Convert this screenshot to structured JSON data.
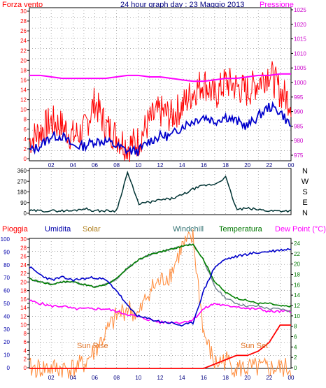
{
  "header": {
    "wind_label": "Forza vento",
    "title": "24 hour graph day : 23 Maggio 2013",
    "pressure_label": "Pressione"
  },
  "x_tick_labels": [
    "02",
    "04",
    "06",
    "08",
    "10",
    "12",
    "14",
    "16",
    "18",
    "20",
    "22",
    "00"
  ],
  "panel_wind": {
    "wind_axis": [
      "30",
      "28",
      "26",
      "24",
      "22",
      "20",
      "18",
      "16",
      "14",
      "12",
      "10",
      "8",
      "6",
      "4",
      "2",
      "0"
    ],
    "pressure_axis": [
      "1025",
      "1020",
      "1015",
      "1010",
      "1005",
      "1000",
      "995",
      "990",
      "985",
      "980",
      "975"
    ]
  },
  "panel_direction": {
    "axis": [
      "360",
      "270",
      "180",
      "90",
      "0"
    ],
    "compass": [
      "N",
      "W",
      "S",
      "E",
      "N"
    ]
  },
  "panel_humidity": {
    "labels": {
      "rain": "Pioggia",
      "humidity": "Umidita",
      "solar": "Solar",
      "windchill": "Windchill",
      "temperature": "Temperatura",
      "dewpoint": "Dew Point (°C)"
    },
    "humidity_axis": [
      "100",
      "90",
      "80",
      "70",
      "60",
      "50",
      "40",
      "30",
      "20",
      "10",
      "0"
    ],
    "rain_axis": [
      "30",
      "28",
      "26",
      "24",
      "22",
      "20",
      "18",
      "16",
      "14",
      "12",
      "10",
      "8",
      "6",
      "4",
      "2",
      "0"
    ],
    "temp_axis": [
      "24",
      "22",
      "20",
      "18",
      "16",
      "14",
      "12",
      "10",
      "8",
      "6",
      "4",
      "2",
      "0"
    ],
    "annotations": {
      "sunrise": "Sun Rise",
      "sunset": "Sun Set"
    }
  },
  "colors": {
    "wind": "#ff0000",
    "gust": "#ff0000",
    "avg_wind": "#0000cc",
    "pressure": "#ff00ff",
    "direction": "#003333",
    "humidity": "#0000cc",
    "solar": "#ff8c3c",
    "windchill": "#708090",
    "temperature": "#008000",
    "dewpoint": "#ff00ff",
    "rain": "#ff0000"
  },
  "chart_data": [
    {
      "type": "line",
      "xlabel": "",
      "ylabel": "Forza vento",
      "x": [
        0,
        1,
        2,
        3,
        4,
        5,
        6,
        7,
        8,
        9,
        10,
        11,
        12,
        13,
        14,
        15,
        16,
        17,
        18,
        19,
        20,
        21,
        22,
        23,
        24
      ],
      "ylim": [
        0,
        31
      ],
      "y2lim": [
        974,
        1026
      ],
      "series": [
        {
          "name": "Forza vento",
          "axis": "left",
          "values": [
            4,
            6,
            8,
            7,
            5,
            6,
            12,
            7,
            5,
            3,
            4,
            8,
            10,
            9,
            11,
            14,
            16,
            13,
            16,
            15,
            14,
            16,
            18,
            14,
            12
          ]
        },
        {
          "name": "",
          "axis": "left",
          "values": [
            2,
            3,
            5,
            5,
            3,
            3,
            4,
            4,
            3,
            2,
            2,
            4,
            5,
            5,
            7,
            8,
            9,
            8,
            9,
            8,
            7,
            9,
            11,
            10,
            7
          ]
        },
        {
          "name": "Pressione",
          "axis": "right",
          "values": [
            1003,
            1003,
            1002.5,
            1002,
            1002,
            1002,
            1002,
            1002,
            1002.5,
            1003,
            1003,
            1002.5,
            1002.5,
            1002,
            1001.5,
            1001,
            1001,
            1001.5,
            1002,
            1002,
            1002.5,
            1003,
            1003,
            1003.5,
            1003.5
          ]
        }
      ]
    },
    {
      "type": "line",
      "ylabel": "",
      "x": [
        0,
        1,
        2,
        3,
        4,
        5,
        6,
        7,
        8,
        9,
        10,
        11,
        12,
        13,
        14,
        15,
        16,
        17,
        18,
        19,
        20,
        21,
        22,
        23,
        24
      ],
      "ylim": [
        0,
        360
      ],
      "series": [
        {
          "name": "",
          "values": [
            20,
            20,
            20,
            20,
            20,
            40,
            20,
            20,
            20,
            340,
            80,
            90,
            110,
            120,
            150,
            200,
            230,
            240,
            300,
            30,
            40,
            30,
            20,
            20,
            20
          ]
        }
      ]
    },
    {
      "type": "line",
      "ylabel": "Umidita",
      "x": [
        0,
        1,
        2,
        3,
        4,
        5,
        6,
        7,
        8,
        9,
        10,
        11,
        12,
        13,
        14,
        15,
        16,
        17,
        18,
        19,
        20,
        21,
        22,
        23,
        24
      ],
      "ylim": [
        0,
        100
      ],
      "y2lim": [
        0,
        30
      ],
      "y3lim": [
        0,
        24
      ],
      "series": [
        {
          "name": "Umidita",
          "axis": "humidity",
          "values": [
            78,
            72,
            68,
            70,
            68,
            69,
            70,
            68,
            60,
            48,
            40,
            38,
            36,
            35,
            33,
            35,
            60,
            78,
            84,
            86,
            88,
            89,
            90,
            91,
            92
          ]
        },
        {
          "name": "Pioggia",
          "axis": "rain",
          "values": [
            0,
            0,
            0,
            0,
            0,
            0,
            0,
            0,
            0,
            0,
            0,
            0,
            0,
            0,
            0,
            0,
            0,
            1,
            2,
            3,
            3,
            4,
            6,
            10,
            10
          ]
        },
        {
          "name": "Solar",
          "axis": "rain",
          "values": [
            0,
            0,
            0,
            0,
            0,
            1,
            4,
            8,
            12,
            14,
            12,
            18,
            20,
            22,
            28,
            30,
            8,
            1,
            2,
            0,
            0,
            0,
            0,
            0,
            0
          ]
        },
        {
          "name": "Windchill",
          "axis": "temp",
          "values": [
            16.5,
            16,
            15.5,
            16,
            16,
            15.5,
            15,
            15.5,
            16.5,
            18.5,
            20,
            21,
            21.5,
            22,
            22.5,
            23,
            20,
            15,
            13,
            12,
            11.5,
            11.5,
            11,
            11,
            10.5
          ]
        },
        {
          "name": "Temperatura",
          "axis": "temp",
          "values": [
            16.5,
            16,
            15.5,
            16,
            16,
            15.5,
            15,
            15.5,
            16.5,
            18.5,
            20,
            21,
            21.5,
            22,
            22.5,
            23,
            20,
            16,
            14,
            13,
            12.5,
            12,
            12,
            11.5,
            11.5
          ]
        },
        {
          "name": "Dew Point (°C)",
          "axis": "temp",
          "values": [
            12.5,
            12,
            11.5,
            11.5,
            11,
            11,
            11,
            11,
            10.5,
            10,
            9.5,
            9,
            8.5,
            8.5,
            8.5,
            9,
            11,
            12,
            11.5,
            11.5,
            11,
            11,
            10.5,
            10.5,
            10.5
          ]
        }
      ]
    }
  ]
}
